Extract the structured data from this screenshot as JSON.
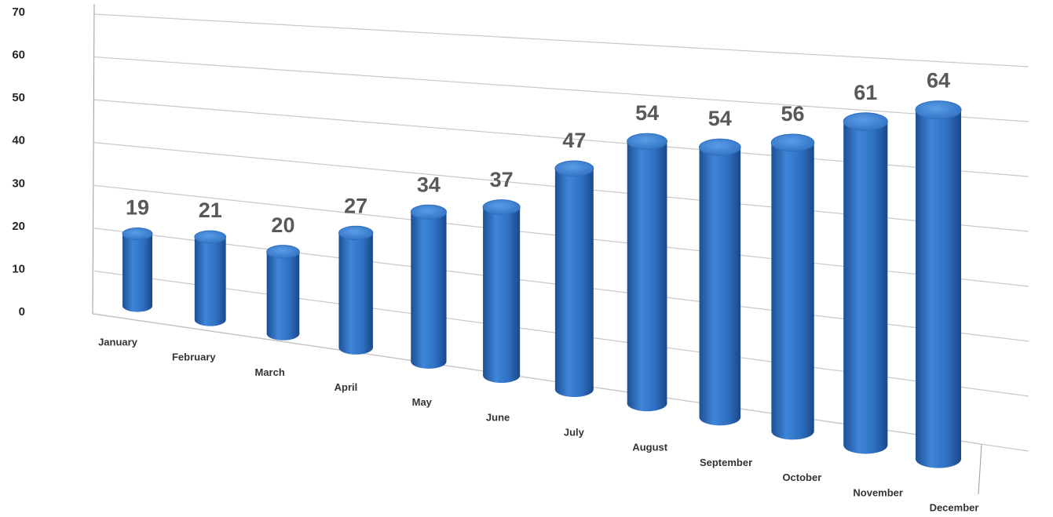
{
  "chart_data": {
    "type": "bar3d",
    "categories": [
      "January",
      "February",
      "March",
      "April",
      "May",
      "June",
      "July",
      "August",
      "September",
      "October",
      "November",
      "December"
    ],
    "values": [
      19,
      21,
      20,
      27,
      34,
      37,
      47,
      54,
      54,
      56,
      61,
      64
    ],
    "color": "#2e6fc0",
    "ylim": [
      0,
      70
    ],
    "yticks": [
      0,
      10,
      20,
      30,
      40,
      50,
      60,
      70
    ],
    "grid": true
  }
}
